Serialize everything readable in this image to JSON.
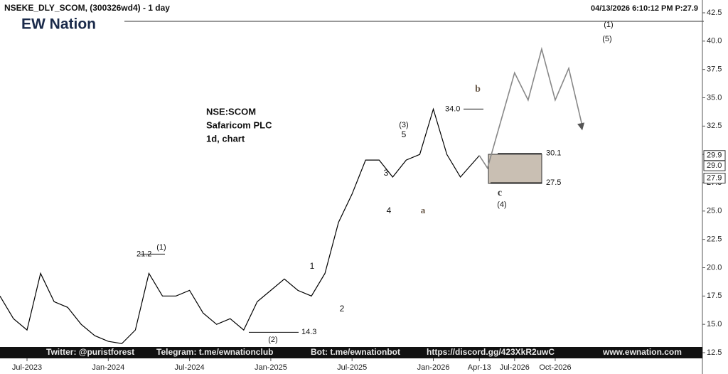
{
  "chart_data": {
    "type": "line",
    "title": "NSEKE_DLY_SCOM, (300326wd4) - 1 day",
    "timestamp": "04/13/2026 6:10:12 PM  P:27.9",
    "logo": "EW Nation",
    "subtitle": [
      "NSE:SCOM",
      "Safaricom PLC",
      "1d, chart"
    ],
    "footer": [
      "Twitter: @puristforest",
      "Telegram: t.me/ewnationclub",
      "Bot: t.me/ewnationbot",
      "https://discord.gg/423XkR2uwC",
      "www.ewnation.com"
    ],
    "series": [
      {
        "color": "#000000",
        "x": [
          "2023-05",
          "2023-06",
          "2023-07",
          "2023-08",
          "2023-09",
          "2023-10",
          "2023-11",
          "2023-12",
          "2024-01",
          "2024-02",
          "2024-03",
          "2024-04",
          "2024-05",
          "2024-06",
          "2024-07",
          "2024-08",
          "2024-09",
          "2024-10",
          "2024-11",
          "2024-12",
          "2025-01",
          "2025-02",
          "2025-03",
          "2025-04",
          "2025-05",
          "2025-06",
          "2025-07",
          "2025-08",
          "2025-09",
          "2025-10",
          "2025-11",
          "2025-12",
          "2026-01",
          "2026-02",
          "2026-03",
          "2026-04-13"
        ],
        "values": [
          17.5,
          15.5,
          14.5,
          19.5,
          17,
          16.5,
          15,
          14,
          13.5,
          13.3,
          14.5,
          19.5,
          17.5,
          17.5,
          18,
          16,
          15,
          15.5,
          14.5,
          17,
          18,
          19,
          18,
          17.5,
          19.5,
          24,
          26.5,
          29.5,
          29.5,
          28,
          29.5,
          30,
          34,
          30,
          28,
          29.9
        ]
      },
      {
        "color": "#888888",
        "x": [
          "2026-04-13",
          "2026-05",
          "2026-06",
          "2026-07",
          "2026-08",
          "2026-09",
          "2026-10",
          "2026-11",
          "2026-12"
        ],
        "values": [
          29.9,
          28.8,
          33,
          37.2,
          34.8,
          39.3,
          34.8,
          37.6,
          32.5
        ]
      }
    ],
    "xticks": [
      {
        "value": "2023-07",
        "label": "Jul-2023"
      },
      {
        "value": "2024-01",
        "label": "Jan-2024"
      },
      {
        "value": "2024-07",
        "label": "Jul-2024"
      },
      {
        "value": "2025-01",
        "label": "Jan-2025"
      },
      {
        "value": "2025-07",
        "label": "Jul-2025"
      },
      {
        "value": "2026-01",
        "label": "Jan-2026"
      },
      {
        "value": "2026-04-13",
        "label": "Apr-13"
      },
      {
        "value": "2026-07",
        "label": "Jul-2026"
      },
      {
        "value": "2026-10",
        "label": "Oct-2026"
      }
    ],
    "ylim": [
      12.5,
      42.5
    ],
    "yticks": [
      12.5,
      {
        "value": 15,
        "label": "15.0"
      },
      17.5,
      {
        "value": 20,
        "label": "20.0"
      },
      22.5,
      {
        "value": 25,
        "label": "25.0"
      },
      27.5,
      {
        "value": 30,
        "label": "30.0"
      },
      32.5,
      {
        "value": 35,
        "label": "35.0"
      },
      37.5,
      {
        "value": 40,
        "label": "40.0"
      },
      42.5
    ],
    "price_tags": [
      29.9,
      {
        "value": 29,
        "label": "29.0"
      },
      27.9
    ],
    "levels": [
      21.2,
      14.3,
      {
        "value": 34,
        "label": "34.0"
      },
      30.1,
      27.5
    ],
    "wave_labels": [
      "(1)",
      "(2)",
      "1",
      "2",
      "3",
      "4",
      "5",
      "(3)",
      "a",
      "b",
      "c",
      "(4)",
      "(1)",
      "(5)"
    ]
  }
}
